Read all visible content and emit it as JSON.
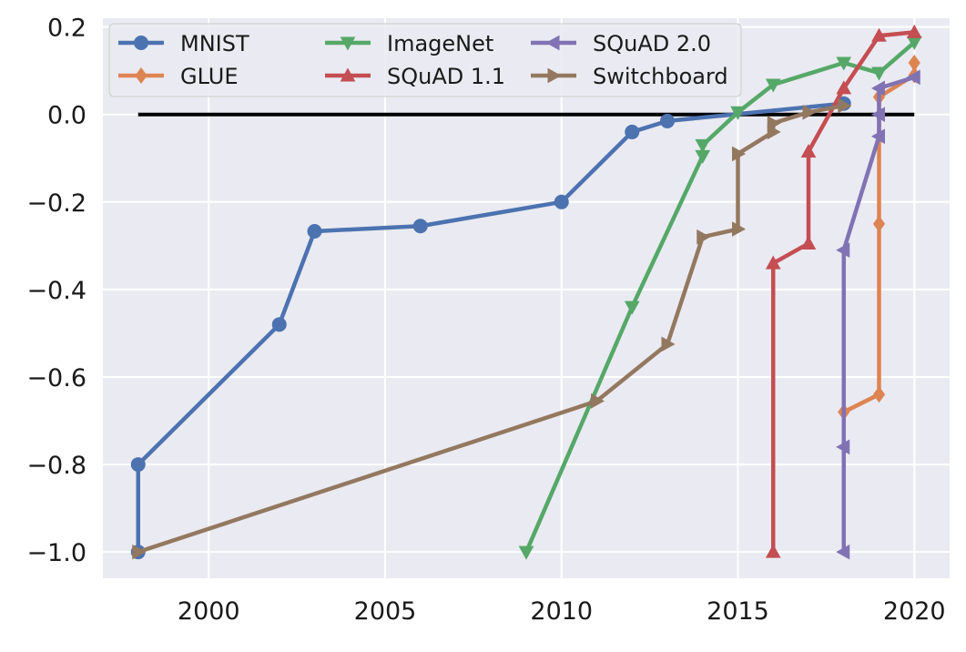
{
  "chart_data": {
    "type": "line",
    "title": "",
    "xlabel": "",
    "ylabel": "",
    "xlim": [
      1997,
      2021
    ],
    "ylim": [
      -1.06,
      0.22
    ],
    "xticks": [
      2000,
      2005,
      2010,
      2015,
      2020
    ],
    "yticks": [
      -1.0,
      -0.8,
      -0.6,
      -0.4,
      -0.2,
      0.0,
      0.2
    ],
    "xtick_labels": [
      "2000",
      "2005",
      "2010",
      "2015",
      "2020"
    ],
    "ytick_labels": [
      "−1.0",
      "−0.8",
      "−0.6",
      "−0.4",
      "−0.2",
      "0.0",
      "0.2"
    ],
    "grid": true,
    "legend_position": "top-left",
    "legend_columns": 3,
    "baseline": {
      "y": 0.0,
      "x_range": [
        1998,
        2020
      ],
      "color": "#000000"
    },
    "series": [
      {
        "name": "MNIST",
        "color": "#4c72b0",
        "marker": "circle",
        "x": [
          1998,
          1998,
          2002,
          2003,
          2006,
          2010,
          2012,
          2013,
          2018
        ],
        "y": [
          -1.0,
          -0.8,
          -0.48,
          -0.267,
          -0.255,
          -0.2,
          -0.04,
          -0.015,
          0.025
        ]
      },
      {
        "name": "GLUE",
        "color": "#dd8452",
        "marker": "diamond",
        "x": [
          2018,
          2019,
          2019,
          2019,
          2020,
          2020
        ],
        "y": [
          -0.68,
          -0.64,
          -0.25,
          0.04,
          0.09,
          0.118
        ]
      },
      {
        "name": "ImageNet",
        "color": "#55a868",
        "marker": "triangle-down",
        "x": [
          2009,
          2012,
          2014,
          2014,
          2015,
          2016,
          2018,
          2019,
          2020
        ],
        "y": [
          -1.0,
          -0.44,
          -0.095,
          -0.07,
          0.005,
          0.068,
          0.118,
          0.095,
          0.165
        ]
      },
      {
        "name": "SQuAD 1.1",
        "color": "#c44e52",
        "marker": "triangle-up",
        "x": [
          2016,
          2016,
          2017,
          2017,
          2018,
          2019,
          2020
        ],
        "y": [
          -1.0,
          -0.34,
          -0.295,
          -0.085,
          0.06,
          0.18,
          0.188
        ]
      },
      {
        "name": "SQuAD 2.0",
        "color": "#8172b3",
        "marker": "triangle-left",
        "x": [
          2018,
          2018,
          2018,
          2019,
          2019,
          2019,
          2020
        ],
        "y": [
          -1.0,
          -0.76,
          -0.31,
          -0.05,
          0.0,
          0.06,
          0.085
        ]
      },
      {
        "name": "Switchboard",
        "color": "#937860",
        "marker": "triangle-right",
        "x": [
          1998,
          2011,
          2013,
          2014,
          2015,
          2015,
          2016,
          2016,
          2017,
          2018
        ],
        "y": [
          -1.0,
          -0.655,
          -0.525,
          -0.28,
          -0.262,
          -0.09,
          -0.04,
          -0.02,
          0.005,
          0.02
        ]
      }
    ]
  }
}
